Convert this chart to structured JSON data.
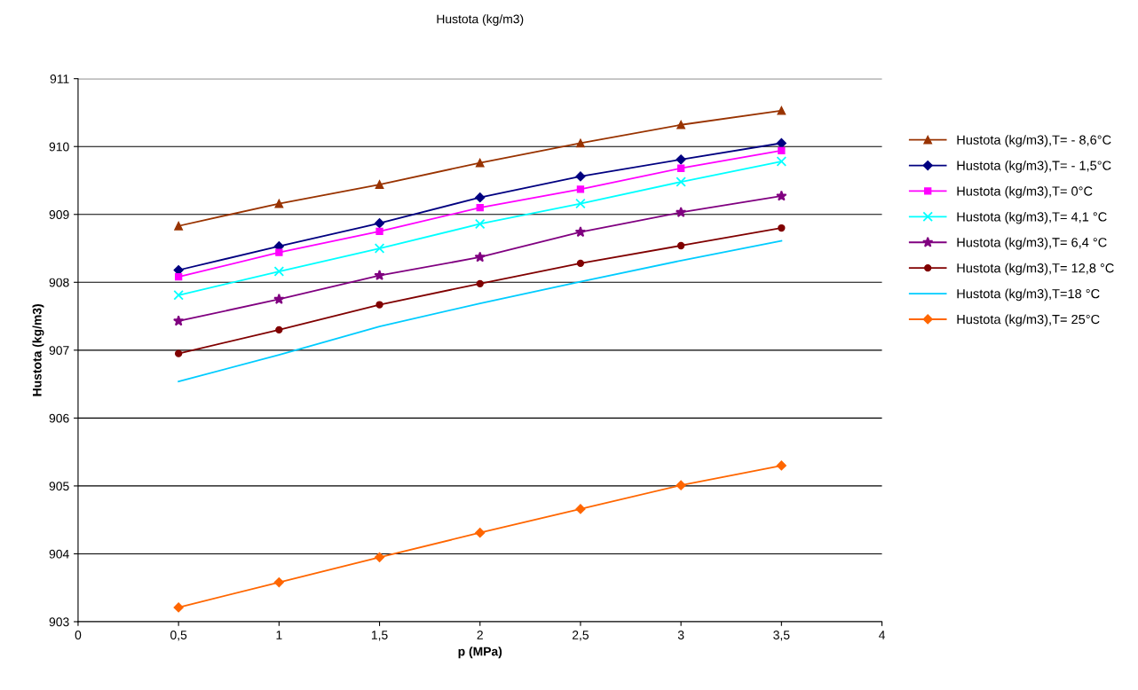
{
  "chart_data": {
    "type": "line",
    "title": "Hustota (kg/m3)",
    "xlabel": "p (MPa)",
    "ylabel": "Hustota (kg/m3)",
    "x": [
      0.5,
      1,
      1.5,
      2,
      2.5,
      3,
      3.5
    ],
    "xlim": [
      0,
      4
    ],
    "xticks": [
      0,
      {
        "value": 0.5,
        "label": "0,5"
      },
      1,
      {
        "value": 1.5,
        "label": "1,5"
      },
      2,
      {
        "value": 2.5,
        "label": "2,5"
      },
      3,
      {
        "value": 3.5,
        "label": "3,5"
      },
      4
    ],
    "ylim": [
      903,
      911
    ],
    "yticks": [
      903,
      904,
      905,
      906,
      907,
      908,
      909,
      910,
      911
    ],
    "grid": "y",
    "legend": "right",
    "series": [
      {
        "name": "Hustota (kg/m3),T= - 8,6°C",
        "color": "#993300",
        "marker": "triangle",
        "values": [
          908.83,
          909.16,
          909.44,
          909.76,
          910.05,
          910.32,
          910.53
        ]
      },
      {
        "name": "Hustota (kg/m3),T= - 1,5°C",
        "color": "#000080",
        "marker": "diamond",
        "values": [
          908.18,
          908.53,
          908.87,
          909.25,
          909.56,
          909.81,
          910.05
        ]
      },
      {
        "name": "Hustota (kg/m3),T= 0°C",
        "color": "#ff00ff",
        "marker": "square",
        "values": [
          908.08,
          908.44,
          908.75,
          909.1,
          909.37,
          909.68,
          909.94
        ]
      },
      {
        "name": "Hustota (kg/m3),T= 4,1 °C",
        "color": "#00ffff",
        "marker": "cross",
        "values": [
          907.81,
          908.16,
          908.5,
          908.86,
          909.16,
          909.48,
          909.78
        ]
      },
      {
        "name": "Hustota (kg/m3),T= 6,4 °C",
        "color": "#800080",
        "marker": "star",
        "values": [
          907.43,
          907.75,
          908.1,
          908.37,
          908.74,
          909.03,
          909.27
        ]
      },
      {
        "name": "Hustota (kg/m3),T= 12,8 °C",
        "color": "#800000",
        "marker": "circle",
        "values": [
          906.95,
          907.3,
          907.67,
          907.98,
          908.28,
          908.54,
          908.8
        ]
      },
      {
        "name": "Hustota (kg/m3),T=18 °C",
        "color": "#00ccff",
        "marker": "none",
        "values": [
          906.54,
          906.93,
          907.35,
          907.69,
          908.01,
          908.32,
          908.61
        ]
      },
      {
        "name": "Hustota (kg/m3),T= 25°C",
        "color": "#ff6600",
        "marker": "diamond",
        "values": [
          903.21,
          903.58,
          903.95,
          904.31,
          904.66,
          905.01,
          905.3
        ]
      }
    ]
  }
}
